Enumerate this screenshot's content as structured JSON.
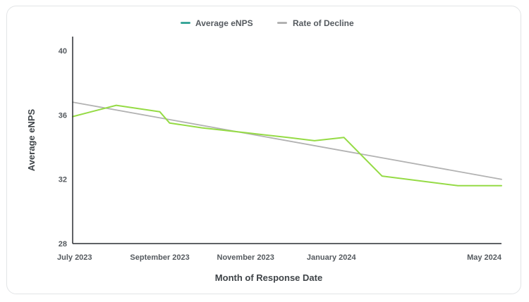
{
  "chart_data": {
    "type": "line",
    "xlabel": "Month of Response Date",
    "ylabel": "Average eNPS",
    "ylim": [
      28,
      40
    ],
    "yticks": [
      28,
      32,
      36,
      40
    ],
    "xlim": [
      "2023-07-01",
      "2024-05-01"
    ],
    "xticks": [
      {
        "date": "2023-07-01",
        "label": "July 2023"
      },
      {
        "date": "2023-09-01",
        "label": "September 2023"
      },
      {
        "date": "2023-11-01",
        "label": "November 2023"
      },
      {
        "date": "2024-01-01",
        "label": "January 2024"
      },
      {
        "date": "2024-05-01",
        "label": "May 2024"
      }
    ],
    "grid": false,
    "legend_position": "top",
    "series": [
      {
        "name": "Average eNPS",
        "legend_color": "#3aa79a",
        "color": "#95db45",
        "points": [
          {
            "x": "2023-07-01",
            "y": 35.9
          },
          {
            "x": "2023-08-01",
            "y": 36.6
          },
          {
            "x": "2023-09-01",
            "y": 36.2
          },
          {
            "x": "2023-09-08",
            "y": 35.5
          },
          {
            "x": "2023-10-01",
            "y": 35.2
          },
          {
            "x": "2023-11-01",
            "y": 34.9
          },
          {
            "x": "2023-12-01",
            "y": 34.6
          },
          {
            "x": "2023-12-20",
            "y": 34.4
          },
          {
            "x": "2024-01-10",
            "y": 34.6
          },
          {
            "x": "2024-02-06",
            "y": 32.2
          },
          {
            "x": "2024-03-31",
            "y": 31.6
          },
          {
            "x": "2024-05-01",
            "y": 31.6
          }
        ]
      },
      {
        "name": "Rate of Decline",
        "legend_color": "#b2b2b2",
        "color": "#b2b2b2",
        "points": [
          {
            "x": "2023-07-01",
            "y": 36.8
          },
          {
            "x": "2024-05-01",
            "y": 32.0
          }
        ]
      }
    ]
  }
}
